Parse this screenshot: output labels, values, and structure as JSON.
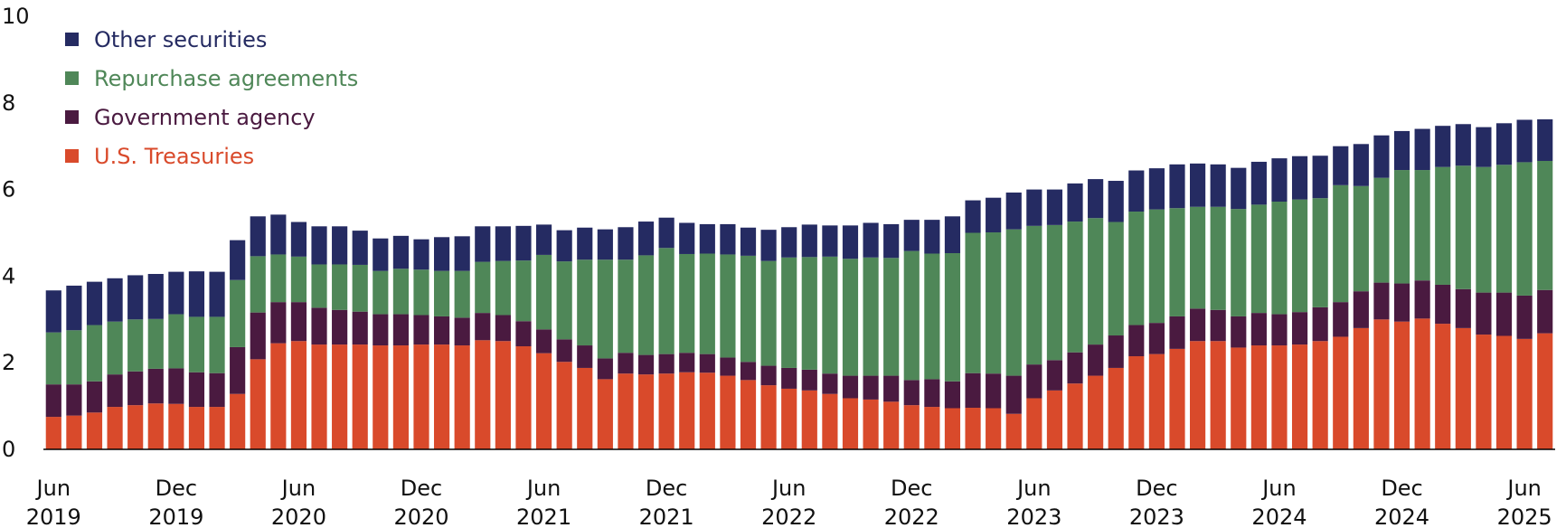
{
  "chart_data": {
    "type": "bar",
    "stacked": true,
    "ylim": [
      0,
      10
    ],
    "yticks": [
      0,
      2,
      4,
      6,
      8,
      10
    ],
    "grid": false,
    "legend_position": "top-left",
    "x_tick_labels": [
      {
        "index": 0,
        "month": "Jun",
        "year": "2019"
      },
      {
        "index": 6,
        "month": "Dec",
        "year": "2019"
      },
      {
        "index": 12,
        "month": "Jun",
        "year": "2020"
      },
      {
        "index": 18,
        "month": "Dec",
        "year": "2020"
      },
      {
        "index": 24,
        "month": "Jun",
        "year": "2021"
      },
      {
        "index": 30,
        "month": "Dec",
        "year": "2021"
      },
      {
        "index": 36,
        "month": "Jun",
        "year": "2022"
      },
      {
        "index": 42,
        "month": "Dec",
        "year": "2022"
      },
      {
        "index": 48,
        "month": "Jun",
        "year": "2023"
      },
      {
        "index": 54,
        "month": "Dec",
        "year": "2023"
      },
      {
        "index": 60,
        "month": "Jun",
        "year": "2024"
      },
      {
        "index": 66,
        "month": "Dec",
        "year": "2024"
      },
      {
        "index": 72,
        "month": "Jun",
        "year": "2025"
      }
    ],
    "series": [
      {
        "name": "U.S. Treasuries",
        "color": "#d94a2b",
        "values": [
          0.75,
          0.78,
          0.85,
          0.98,
          1.02,
          1.06,
          1.05,
          0.98,
          0.98,
          1.28,
          2.08,
          2.45,
          2.5,
          2.42,
          2.42,
          2.42,
          2.4,
          2.4,
          2.42,
          2.42,
          2.4,
          2.52,
          2.5,
          2.38,
          2.22,
          2.02,
          1.88,
          1.62,
          1.75,
          1.73,
          1.75,
          1.78,
          1.77,
          1.7,
          1.6,
          1.48,
          1.4,
          1.36,
          1.28,
          1.18,
          1.15,
          1.1,
          1.02,
          0.98,
          0.95,
          0.96,
          0.95,
          0.82,
          1.18,
          1.36,
          1.52,
          1.7,
          1.88,
          2.15,
          2.2,
          2.32,
          2.5,
          2.5,
          2.35,
          2.4,
          2.4,
          2.42,
          2.5,
          2.6,
          2.8,
          3.0,
          2.95,
          3.02,
          2.9,
          2.8,
          2.65,
          2.62,
          2.55,
          2.68
        ]
      },
      {
        "name": "Government agency",
        "color": "#4a1a40",
        "values": [
          0.75,
          0.72,
          0.72,
          0.75,
          0.78,
          0.8,
          0.82,
          0.8,
          0.78,
          1.08,
          1.08,
          0.95,
          0.9,
          0.85,
          0.8,
          0.76,
          0.72,
          0.72,
          0.68,
          0.65,
          0.64,
          0.63,
          0.6,
          0.58,
          0.55,
          0.52,
          0.52,
          0.48,
          0.48,
          0.45,
          0.45,
          0.45,
          0.43,
          0.42,
          0.42,
          0.45,
          0.48,
          0.48,
          0.47,
          0.52,
          0.55,
          0.6,
          0.58,
          0.64,
          0.62,
          0.8,
          0.8,
          0.88,
          0.78,
          0.7,
          0.72,
          0.72,
          0.75,
          0.72,
          0.72,
          0.75,
          0.75,
          0.72,
          0.72,
          0.75,
          0.72,
          0.75,
          0.78,
          0.8,
          0.85,
          0.85,
          0.88,
          0.88,
          0.9,
          0.9,
          0.97,
          1.0,
          1.0,
          1.0
        ]
      },
      {
        "name": "Repurchase agreements",
        "color": "#4f8758",
        "values": [
          1.2,
          1.25,
          1.3,
          1.22,
          1.2,
          1.15,
          1.25,
          1.28,
          1.3,
          1.55,
          1.3,
          1.1,
          1.05,
          1.0,
          1.05,
          1.08,
          1.0,
          1.05,
          1.05,
          1.05,
          1.08,
          1.18,
          1.25,
          1.4,
          1.72,
          1.8,
          1.98,
          2.28,
          2.15,
          2.3,
          2.45,
          2.28,
          2.32,
          2.38,
          2.45,
          2.42,
          2.55,
          2.6,
          2.7,
          2.7,
          2.73,
          2.72,
          2.98,
          2.9,
          2.96,
          3.24,
          3.26,
          3.38,
          3.2,
          3.12,
          3.02,
          2.92,
          2.62,
          2.62,
          2.62,
          2.5,
          2.35,
          2.38,
          2.48,
          2.5,
          2.6,
          2.6,
          2.52,
          2.7,
          2.43,
          2.42,
          2.62,
          2.55,
          2.72,
          2.85,
          2.9,
          2.95,
          3.08,
          2.98
        ]
      },
      {
        "name": "Other securities",
        "color": "#252b62",
        "values": [
          0.97,
          1.03,
          1.0,
          1.0,
          1.02,
          1.04,
          0.98,
          1.05,
          1.04,
          0.92,
          0.92,
          0.92,
          0.8,
          0.88,
          0.88,
          0.79,
          0.75,
          0.76,
          0.7,
          0.78,
          0.8,
          0.82,
          0.8,
          0.8,
          0.7,
          0.72,
          0.74,
          0.7,
          0.75,
          0.78,
          0.7,
          0.72,
          0.68,
          0.7,
          0.65,
          0.72,
          0.7,
          0.75,
          0.72,
          0.77,
          0.8,
          0.78,
          0.72,
          0.78,
          0.85,
          0.75,
          0.8,
          0.85,
          0.84,
          0.82,
          0.88,
          0.9,
          0.95,
          0.95,
          0.95,
          1.01,
          1.0,
          0.98,
          0.95,
          0.99,
          1.0,
          1.0,
          0.98,
          0.9,
          0.97,
          0.98,
          0.9,
          0.95,
          0.95,
          0.96,
          0.92,
          0.96,
          0.98,
          0.96
        ]
      }
    ],
    "legend_order": [
      "Other securities",
      "Repurchase agreements",
      "Government agency",
      "U.S. Treasuries"
    ]
  }
}
